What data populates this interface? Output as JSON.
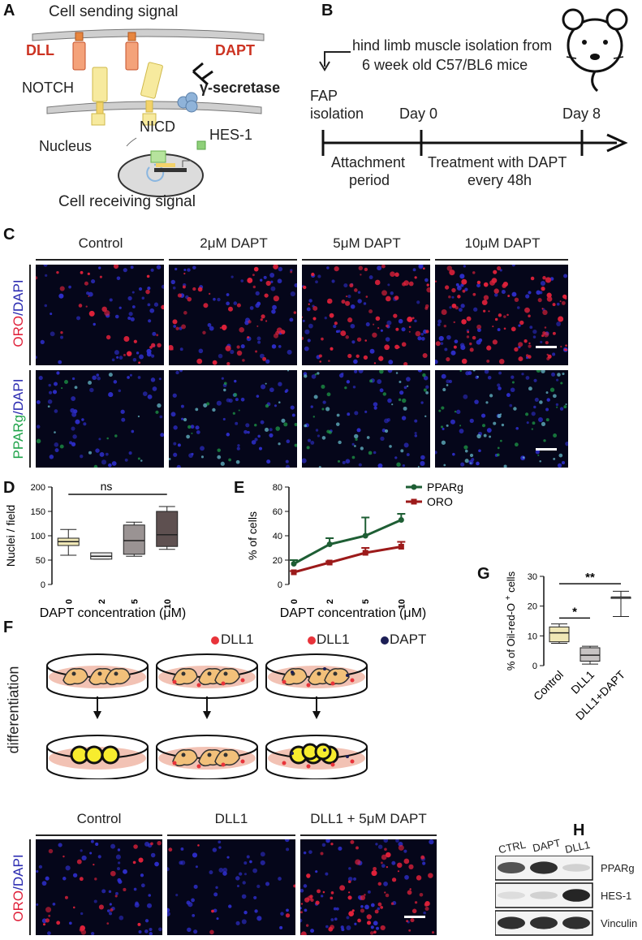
{
  "panel_labels": [
    "A",
    "B",
    "C",
    "D",
    "E",
    "F",
    "G",
    "H"
  ],
  "panelA": {
    "top_label": "Cell sending signal",
    "bottom_label": "Cell receiving signal",
    "dll": "DLL",
    "dapt": "DAPT",
    "notch": "NOTCH",
    "gamma": "γ-secretase",
    "nicd": "NICD",
    "nucleus": "Nucleus",
    "hes1": "HES-1",
    "colors": {
      "dll": "#cc3322",
      "receptor": "#f3e08a",
      "secretase": "#8fb3d9",
      "hes": "#8fd07a"
    }
  },
  "panelB": {
    "description_line1": "hind limb muscle isolation from",
    "description_line2": "6 week old C57/BL6 mice",
    "fap_line1": "FAP",
    "fap_line2": "isolation",
    "day0": "Day 0",
    "day8": "Day 8",
    "attach_line1": "Attachment",
    "attach_line2": "period",
    "treat_line1": "Treatment with DAPT",
    "treat_line2": "every 48h",
    "mouse_icon": "mouse-icon"
  },
  "panelC": {
    "columns": [
      "Control",
      "2μM DAPT",
      "5μM DAPT",
      "10μM DAPT"
    ],
    "row1_label_a": "ORO",
    "row1_label_b": "/DAPI",
    "row2_label_a": "PPARg",
    "row2_label_b": "/DAPI",
    "colors": {
      "oro": "#e0213a",
      "pparg": "#1fa34a",
      "dapi": "#2a2ab0"
    }
  },
  "panelF": {
    "side_label": "differentiation",
    "legend_dll1": "DLL1",
    "legend_dapt": "DAPT",
    "columns": [
      "Control",
      "DLL1",
      "DLL1 + 5μM DAPT"
    ],
    "row_label_a": "ORO",
    "row_label_b": "/DAPI"
  },
  "panelH": {
    "lanes": [
      "CTRL",
      "DAPT",
      "DLL1"
    ],
    "bands": [
      "PPARg",
      "HES-1",
      "Vinculin"
    ],
    "intensities": {
      "PPARg": [
        0.75,
        0.9,
        0.2
      ],
      "HES-1": [
        0.15,
        0.2,
        0.95
      ],
      "Vinculin": [
        0.9,
        0.9,
        0.9
      ]
    }
  },
  "chart_data": [
    {
      "id": "D",
      "type": "box",
      "categories": [
        "0",
        "2",
        "5",
        "10"
      ],
      "xlabel": "DAPT concentration (μM)",
      "ylabel": "Nuclei / field",
      "ylim": [
        0,
        200
      ],
      "yticks": [
        0,
        50,
        100,
        150,
        200
      ],
      "annotation": "ns",
      "boxes": [
        {
          "min": 60,
          "q1": 80,
          "median": 88,
          "q3": 95,
          "max": 113,
          "color": "#efe7b6"
        },
        {
          "min": 52,
          "q1": 52,
          "median": 58,
          "q3": 65,
          "max": 65,
          "color": "#e8e8e8"
        },
        {
          "min": 58,
          "q1": 62,
          "median": 90,
          "q3": 122,
          "max": 128,
          "color": "#9a9393"
        },
        {
          "min": 72,
          "q1": 78,
          "median": 102,
          "q3": 150,
          "max": 160,
          "color": "#5e5050"
        }
      ]
    },
    {
      "id": "E",
      "type": "line",
      "categories": [
        "0",
        "2",
        "5",
        "10"
      ],
      "xlabel": "DAPT concentration (μM)",
      "ylabel": "% of cells",
      "ylim": [
        0,
        80
      ],
      "yticks": [
        0,
        20,
        40,
        60,
        80
      ],
      "legend_position": "top-right",
      "series": [
        {
          "name": "PPARg",
          "values": [
            17,
            33,
            40,
            53
          ],
          "errors": [
            3,
            5,
            15,
            5
          ],
          "color": "#1e5e34"
        },
        {
          "name": "ORO",
          "values": [
            10,
            18,
            26,
            31
          ],
          "errors": [
            1,
            1,
            4,
            4
          ],
          "color": "#9c1a1a"
        }
      ]
    },
    {
      "id": "G",
      "type": "box",
      "categories": [
        "Control",
        "DLL1",
        "DLL1+DAPT"
      ],
      "ylabel": "% of Oil-red-O",
      "ylabel_sup": "+",
      "ylabel_suffix": "cells",
      "ylim": [
        0,
        30
      ],
      "yticks": [
        0,
        10,
        20,
        30
      ],
      "significance": [
        {
          "from": 0,
          "to": 1,
          "label": "*"
        },
        {
          "from": 0,
          "to": 2,
          "label": "**"
        }
      ],
      "boxes": [
        {
          "min": 7.5,
          "q1": 8,
          "median": 11,
          "q3": 13,
          "max": 14,
          "color": "#efe7b6"
        },
        {
          "min": 0.5,
          "q1": 1.5,
          "median": 3.5,
          "q3": 6,
          "max": 6.5,
          "color": "#c7c3c3"
        },
        {
          "min": 16.5,
          "q1": 23,
          "median": 23,
          "q3": 23,
          "max": 25,
          "color": "#ffffff"
        }
      ]
    }
  ]
}
